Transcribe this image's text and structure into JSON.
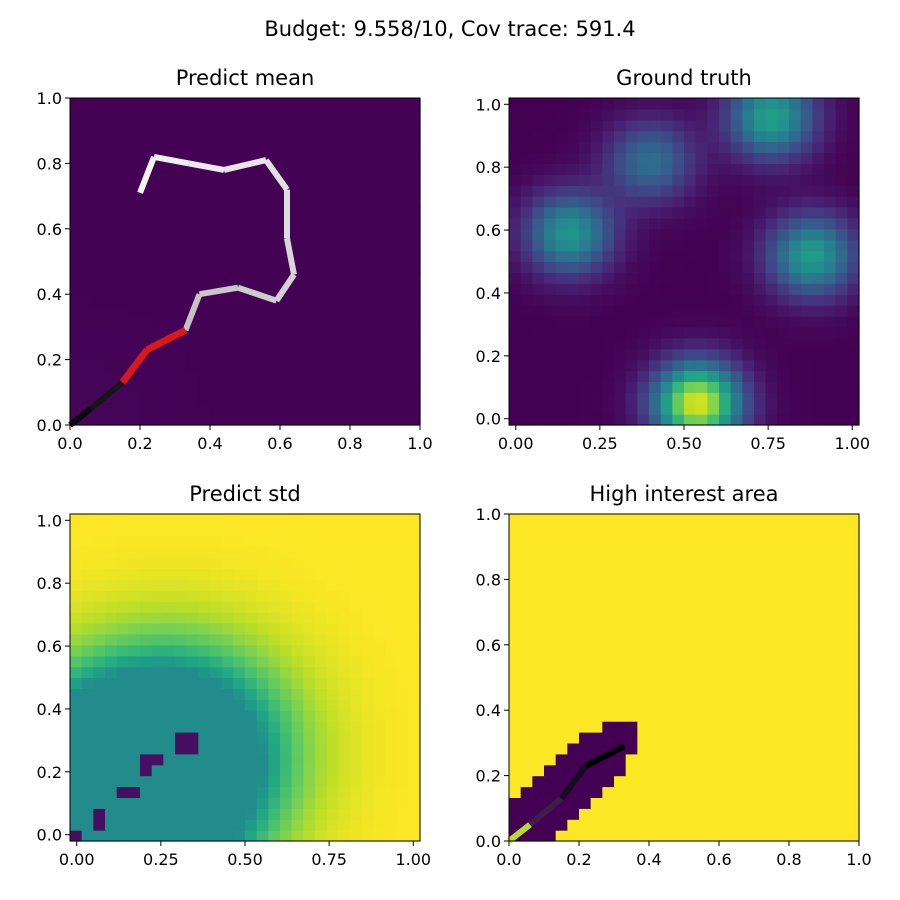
{
  "figure": {
    "suptitle": "Budget: 9.558/10,  Cov trace: 591.4"
  },
  "chart_data": [
    {
      "type": "heatmap",
      "title": "Predict mean",
      "xlim": [
        0,
        1
      ],
      "ylim": [
        0,
        1
      ],
      "xticks": [
        "0.0",
        "0.2",
        "0.4",
        "0.6",
        "0.8",
        "1.0"
      ],
      "yticks": [
        "0.0",
        "0.2",
        "0.4",
        "0.6",
        "0.8",
        "1.0"
      ],
      "colormap": "viridis",
      "field_range": [
        0.0,
        0.1
      ],
      "path_colormap": "gray (recent = white, oldest = black)",
      "path": [
        [
          0.0,
          0.0
        ],
        [
          0.06,
          0.05
        ],
        [
          0.15,
          0.13
        ],
        [
          0.22,
          0.23
        ],
        [
          0.33,
          0.29
        ],
        [
          0.37,
          0.4
        ],
        [
          0.48,
          0.42
        ],
        [
          0.59,
          0.38
        ],
        [
          0.64,
          0.46
        ],
        [
          0.62,
          0.57
        ],
        [
          0.62,
          0.72
        ],
        [
          0.56,
          0.81
        ],
        [
          0.44,
          0.78
        ],
        [
          0.34,
          0.8
        ],
        [
          0.24,
          0.82
        ],
        [
          0.2,
          0.71
        ]
      ],
      "highlight_segment": {
        "color": "#d7191c",
        "points": [
          [
            0.15,
            0.13
          ],
          [
            0.22,
            0.23
          ],
          [
            0.33,
            0.29
          ]
        ]
      }
    },
    {
      "type": "heatmap",
      "title": "Ground truth",
      "xlim": [
        -0.02,
        1.02
      ],
      "ylim": [
        -0.02,
        1.02
      ],
      "xticks": [
        "0.00",
        "0.25",
        "0.50",
        "0.75",
        "1.00"
      ],
      "yticks": [
        "0.0",
        "0.2",
        "0.4",
        "0.6",
        "0.8",
        "1.0"
      ],
      "colormap": "viridis",
      "peaks": [
        {
          "x": 0.54,
          "y": 0.05,
          "value": 1.0
        },
        {
          "x": 0.16,
          "y": 0.59,
          "value": 0.55
        },
        {
          "x": 0.88,
          "y": 0.52,
          "value": 0.58
        },
        {
          "x": 0.76,
          "y": 0.96,
          "value": 0.6
        },
        {
          "x": 0.4,
          "y": 0.82,
          "value": 0.38
        }
      ]
    },
    {
      "type": "heatmap",
      "title": "Predict std",
      "xlim": [
        -0.02,
        1.02
      ],
      "ylim": [
        -0.02,
        1.02
      ],
      "xticks": [
        "0.00",
        "0.25",
        "0.50",
        "0.75",
        "1.00"
      ],
      "yticks": [
        "0.0",
        "0.2",
        "0.4",
        "0.6",
        "0.8",
        "1.0"
      ],
      "colormap": "viridis",
      "field_range": [
        0.0,
        1.0
      ],
      "low_std_points": [
        [
          0.0,
          0.0
        ],
        [
          0.06,
          0.05
        ],
        [
          0.15,
          0.13
        ],
        [
          0.22,
          0.23
        ],
        [
          0.33,
          0.29
        ]
      ]
    },
    {
      "type": "heatmap",
      "title": "High interest area",
      "xlim": [
        0,
        1
      ],
      "ylim": [
        0,
        1
      ],
      "xticks": [
        "0.0",
        "0.2",
        "0.4",
        "0.6",
        "0.8",
        "1.0"
      ],
      "yticks": [
        "0.0",
        "0.2",
        "0.4",
        "0.6",
        "0.8",
        "1.0"
      ],
      "colormap": "viridis",
      "region": {
        "center": [
          0.17,
          0.17
        ],
        "axis_direction": [
          0.72,
          0.69
        ],
        "half_length": 0.27,
        "half_width": 0.09
      },
      "path": [
        [
          0.0,
          0.0
        ],
        [
          0.06,
          0.05
        ],
        [
          0.15,
          0.13
        ],
        [
          0.22,
          0.23
        ],
        [
          0.33,
          0.29
        ]
      ]
    }
  ]
}
